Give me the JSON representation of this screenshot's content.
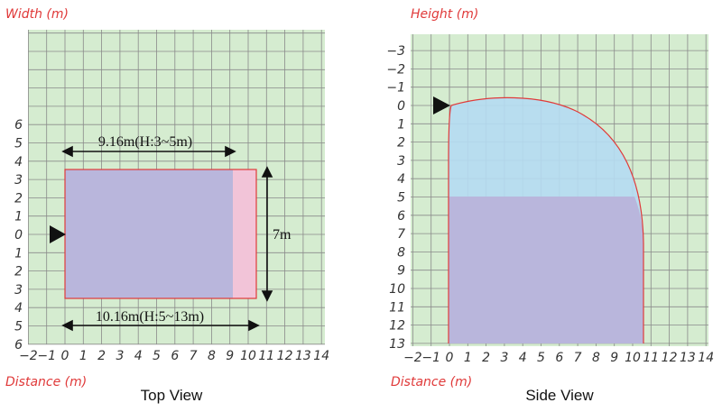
{
  "top_view": {
    "y_axis_label": "Width (m)",
    "x_axis_label": "Distance (m)",
    "caption": "Top View",
    "x_ticks": [
      "−2",
      "−1",
      "0",
      "1",
      "2",
      "3",
      "4",
      "5",
      "6",
      "7",
      "8",
      "9",
      "10",
      "11",
      "12",
      "13",
      "14"
    ],
    "y_ticks": [
      "6",
      "5",
      "4",
      "3",
      "2",
      "1",
      "0",
      "1",
      "2",
      "3",
      "4",
      "5",
      "6"
    ],
    "annotations": {
      "upper_range": "9.16m(H:3~5m)",
      "lower_range": "10.16m(H:5~13m)",
      "width": "7m"
    }
  },
  "side_view": {
    "y_axis_label": "Height (m)",
    "x_axis_label": "Distance (m)",
    "caption": "Side View",
    "x_ticks": [
      "−2",
      "−1",
      "0",
      "1",
      "2",
      "3",
      "4",
      "5",
      "6",
      "7",
      "8",
      "9",
      "10",
      "11",
      "12",
      "13",
      "14"
    ],
    "y_ticks": [
      "−3",
      "−2",
      "−1",
      "0",
      "1",
      "2",
      "3",
      "4",
      "5",
      "6",
      "7",
      "8",
      "9",
      "10",
      "11",
      "12",
      "13"
    ]
  }
}
